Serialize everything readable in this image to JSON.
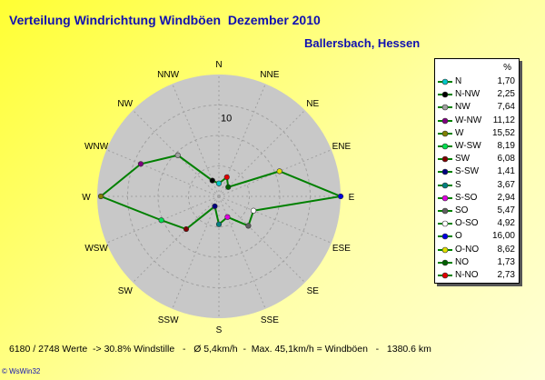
{
  "title": "Verteilung Windrichtung Windböen  Dezember 2010",
  "subtitle": "Ballersbach, Hessen",
  "footer": "6180 / 2748 Werte  -> 30.8% Windstille   -   Ø 5,4km/h  -  Max. 45,1km/h = Windböen   -   1380.6 km",
  "brand": "© WsWin32",
  "colors": {
    "polygon": "#008000",
    "disk": "#c8c8c8",
    "grid": "#a0a0a0"
  },
  "chart_data": {
    "type": "radar",
    "title": "Verteilung Windrichtung Windböen  Dezember 2010",
    "subtitle": "Ballersbach, Hessen",
    "rmax": 16,
    "ticks": [
      10
    ],
    "tick_labels": [
      "10"
    ],
    "directions": [
      "N",
      "NNE",
      "NE",
      "ENE",
      "E",
      "ESE",
      "SE",
      "SSE",
      "S",
      "SSW",
      "SW",
      "WSW",
      "W",
      "WNW",
      "NW",
      "NNW"
    ],
    "legend_unit": "%",
    "legend_position": "right",
    "series": [
      {
        "name": "N",
        "dir": "N",
        "value": 1.7,
        "value_label": "1,70",
        "color": "#00c8c8"
      },
      {
        "name": "N-NW",
        "dir": "NNW",
        "value": 2.25,
        "value_label": "2,25",
        "color": "#000000"
      },
      {
        "name": "NW",
        "dir": "NW",
        "value": 7.64,
        "value_label": "7,64",
        "color": "#a0a0a0"
      },
      {
        "name": "W-NW",
        "dir": "WNW",
        "value": 11.12,
        "value_label": "11,12",
        "color": "#800080"
      },
      {
        "name": "W",
        "dir": "W",
        "value": 15.52,
        "value_label": "15,52",
        "color": "#808000"
      },
      {
        "name": "W-SW",
        "dir": "WSW",
        "value": 8.19,
        "value_label": "8,19",
        "color": "#00e050"
      },
      {
        "name": "SW",
        "dir": "SW",
        "value": 6.08,
        "value_label": "6,08",
        "color": "#800000"
      },
      {
        "name": "S-SW",
        "dir": "SSW",
        "value": 1.41,
        "value_label": "1,41",
        "color": "#000080"
      },
      {
        "name": "S",
        "dir": "S",
        "value": 3.67,
        "value_label": "3,67",
        "color": "#008080"
      },
      {
        "name": "S-SO",
        "dir": "SSE",
        "value": 2.94,
        "value_label": "2,94",
        "color": "#e000e0"
      },
      {
        "name": "SO",
        "dir": "SE",
        "value": 5.47,
        "value_label": "5,47",
        "color": "#606060"
      },
      {
        "name": "O-SO",
        "dir": "ESE",
        "value": 4.92,
        "value_label": "4,92",
        "color": "#ffffff"
      },
      {
        "name": "O",
        "dir": "E",
        "value": 16.0,
        "value_label": "16,00",
        "color": "#0000e0"
      },
      {
        "name": "O-NO",
        "dir": "ENE",
        "value": 8.62,
        "value_label": "8,62",
        "color": "#e0e000"
      },
      {
        "name": "NO",
        "dir": "NE",
        "value": 1.73,
        "value_label": "1,73",
        "color": "#006000"
      },
      {
        "name": "N-NO",
        "dir": "NNE",
        "value": 2.73,
        "value_label": "2,73",
        "color": "#e00000"
      }
    ]
  }
}
